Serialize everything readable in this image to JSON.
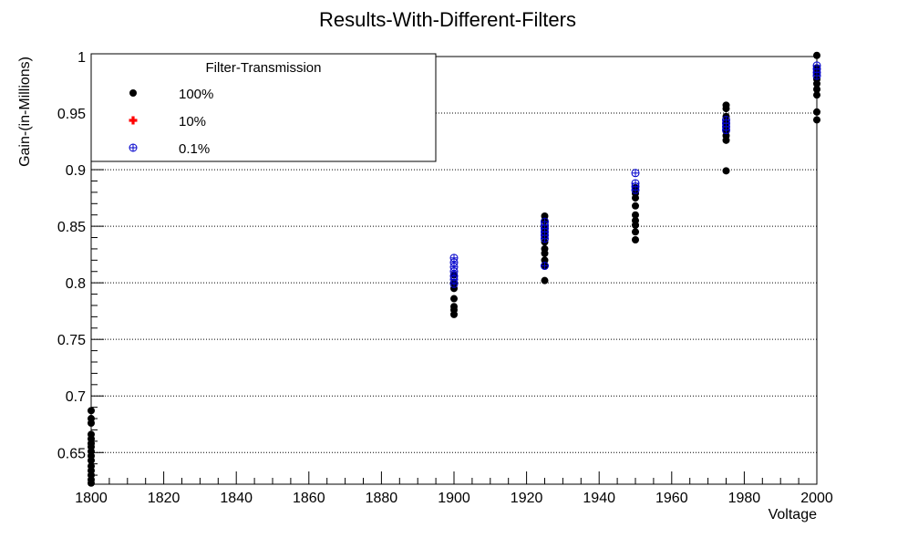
{
  "chart_data": {
    "type": "scatter",
    "title": "Results-With-Different-Filters",
    "xlabel": "Voltage",
    "ylabel": "Gain-(in-Millions)",
    "xlim": [
      1800,
      2000
    ],
    "ylim": [
      0.622,
      1.0
    ],
    "x_ticks": [
      "1800",
      "1820",
      "1840",
      "1860",
      "1880",
      "1900",
      "1920",
      "1940",
      "1960",
      "1980",
      "2000"
    ],
    "y_ticks": [
      "0.65",
      "0.7",
      "0.75",
      "0.8",
      "0.85",
      "0.9",
      "0.95",
      "1"
    ],
    "y_grid": true,
    "x_grid": false,
    "legend": {
      "title": "Filter-Transmission",
      "placement": "top-left",
      "entries": [
        "100%",
        "10%",
        "0.1%"
      ]
    },
    "series": [
      {
        "name": "100%",
        "color": "#000000",
        "marker": "filled-circle",
        "points": [
          [
            1800,
            0.687
          ],
          [
            1800,
            0.68
          ],
          [
            1800,
            0.676
          ],
          [
            1800,
            0.666
          ],
          [
            1800,
            0.662
          ],
          [
            1800,
            0.658
          ],
          [
            1800,
            0.655
          ],
          [
            1800,
            0.651
          ],
          [
            1800,
            0.647
          ],
          [
            1800,
            0.643
          ],
          [
            1800,
            0.638
          ],
          [
            1800,
            0.634
          ],
          [
            1800,
            0.63
          ],
          [
            1800,
            0.626
          ],
          [
            1800,
            0.623
          ],
          [
            1900,
            0.807
          ],
          [
            1900,
            0.8
          ],
          [
            1900,
            0.795
          ],
          [
            1900,
            0.786
          ],
          [
            1900,
            0.779
          ],
          [
            1900,
            0.776
          ],
          [
            1900,
            0.772
          ],
          [
            1925,
            0.859
          ],
          [
            1925,
            0.855
          ],
          [
            1925,
            0.849
          ],
          [
            1925,
            0.845
          ],
          [
            1925,
            0.841
          ],
          [
            1925,
            0.836
          ],
          [
            1925,
            0.83
          ],
          [
            1925,
            0.826
          ],
          [
            1925,
            0.82
          ],
          [
            1925,
            0.815
          ],
          [
            1925,
            0.802
          ],
          [
            1950,
            0.884
          ],
          [
            1950,
            0.879
          ],
          [
            1950,
            0.875
          ],
          [
            1950,
            0.868
          ],
          [
            1950,
            0.86
          ],
          [
            1950,
            0.855
          ],
          [
            1950,
            0.851
          ],
          [
            1950,
            0.845
          ],
          [
            1950,
            0.838
          ],
          [
            1975,
            0.957
          ],
          [
            1975,
            0.954
          ],
          [
            1975,
            0.947
          ],
          [
            1975,
            0.942
          ],
          [
            1975,
            0.938
          ],
          [
            1975,
            0.934
          ],
          [
            1975,
            0.93
          ],
          [
            1975,
            0.926
          ],
          [
            1975,
            0.899
          ],
          [
            2000,
            1.001
          ],
          [
            2000,
            0.99
          ],
          [
            2000,
            0.985
          ],
          [
            2000,
            0.98
          ],
          [
            2000,
            0.976
          ],
          [
            2000,
            0.971
          ],
          [
            2000,
            0.966
          ],
          [
            2000,
            0.951
          ],
          [
            2000,
            0.944
          ]
        ]
      },
      {
        "name": "10%",
        "color": "#ff0000",
        "marker": "filled-cross",
        "points": []
      },
      {
        "name": "0.1%",
        "color": "#0000cc",
        "marker": "circle-plus",
        "points": [
          [
            1900,
            0.822
          ],
          [
            1900,
            0.818
          ],
          [
            1900,
            0.814
          ],
          [
            1900,
            0.81
          ],
          [
            1900,
            0.806
          ],
          [
            1900,
            0.803
          ],
          [
            1900,
            0.799
          ],
          [
            1925,
            0.854
          ],
          [
            1925,
            0.851
          ],
          [
            1925,
            0.848
          ],
          [
            1925,
            0.845
          ],
          [
            1925,
            0.842
          ],
          [
            1925,
            0.839
          ],
          [
            1925,
            0.815
          ],
          [
            1950,
            0.897
          ],
          [
            1950,
            0.888
          ],
          [
            1950,
            0.885
          ],
          [
            1950,
            0.882
          ],
          [
            1975,
            0.944
          ],
          [
            1975,
            0.941
          ],
          [
            1975,
            0.938
          ],
          [
            1975,
            0.935
          ],
          [
            2000,
            0.992
          ],
          [
            2000,
            0.989
          ],
          [
            2000,
            0.986
          ],
          [
            2000,
            0.983
          ]
        ]
      }
    ]
  }
}
